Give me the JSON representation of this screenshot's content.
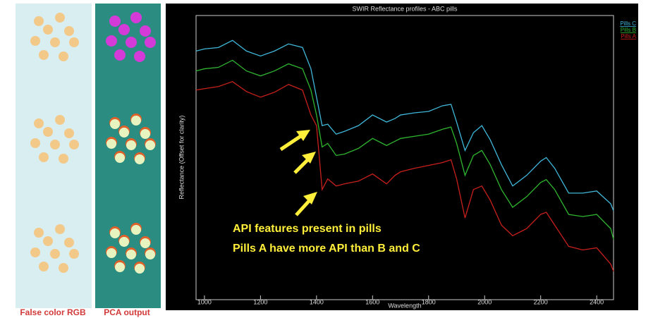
{
  "image_labels": [
    "False color RGB",
    "PCA output"
  ],
  "chart_data": {
    "type": "line",
    "title": "SWIR Reflectance profiles - ABC pills",
    "x_label": "Wavelength",
    "y_label": "Reflectance (Offset for clarity)",
    "x": [
      970,
      1000,
      1050,
      1100,
      1150,
      1200,
      1250,
      1300,
      1350,
      1380,
      1400,
      1420,
      1440,
      1470,
      1500,
      1550,
      1600,
      1650,
      1680,
      1700,
      1750,
      1800,
      1850,
      1880,
      1900,
      1930,
      1960,
      1990,
      2020,
      2060,
      2100,
      2150,
      2200,
      2220,
      2250,
      2300,
      2350,
      2400,
      2450,
      2460
    ],
    "series": [
      {
        "name": "Pills C",
        "color": "#3fb6d8",
        "values": [
          350,
          353,
          355,
          365,
          350,
          343,
          350,
          360,
          355,
          325,
          285,
          245,
          247,
          233,
          237,
          245,
          260,
          250,
          255,
          260,
          263,
          265,
          273,
          275,
          250,
          210,
          235,
          245,
          225,
          190,
          160,
          175,
          195,
          200,
          185,
          150,
          150,
          153,
          135,
          125
        ]
      },
      {
        "name": "Pills B",
        "color": "#2fb52f",
        "values": [
          322,
          325,
          327,
          337,
          322,
          315,
          322,
          332,
          325,
          295,
          260,
          215,
          220,
          203,
          205,
          213,
          227,
          217,
          223,
          227,
          230,
          233,
          240,
          243,
          220,
          175,
          203,
          210,
          190,
          155,
          130,
          145,
          165,
          169,
          155,
          120,
          117,
          120,
          100,
          85
        ]
      },
      {
        "name": "Pills A",
        "color": "#c8201c",
        "values": [
          295,
          297,
          300,
          307,
          293,
          285,
          292,
          303,
          295,
          260,
          245,
          155,
          170,
          160,
          163,
          167,
          177,
          163,
          175,
          180,
          185,
          189,
          193,
          197,
          170,
          115,
          155,
          160,
          140,
          105,
          90,
          100,
          120,
          123,
          105,
          75,
          70,
          73,
          50,
          40
        ]
      }
    ],
    "xlim": [
      970,
      2460
    ],
    "ylim": [
      0,
      400
    ],
    "xticks": [
      1000,
      1200,
      1400,
      1600,
      1800,
      2000,
      2200,
      2400
    ],
    "legend": "top-right",
    "annotations": [
      "API features present in pills",
      "Pills A have more API than B and C"
    ]
  }
}
